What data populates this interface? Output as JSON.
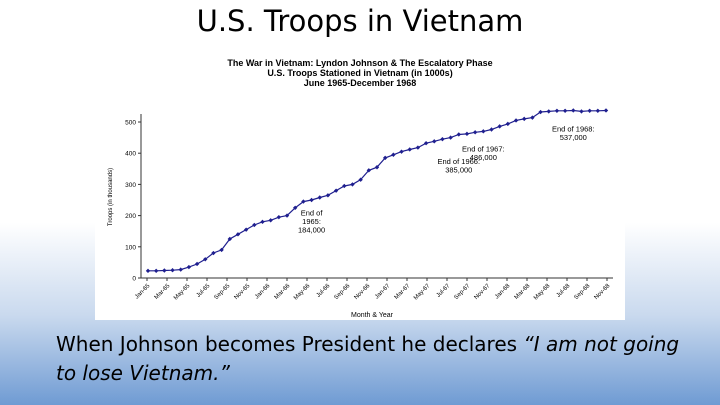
{
  "slide": {
    "title": "U.S. Troops in Vietnam",
    "caption_plain": "When Johnson becomes President he declares ",
    "caption_quote": "“I am not going to lose Vietnam.”"
  },
  "chart_data": {
    "type": "line",
    "title_lines": [
      "The War in Vietnam: Lyndon Johnson & The Escalatory Phase",
      "U.S. Troops Stationed in Vietnam (in 1000s)",
      "June 1965-December 1968"
    ],
    "xlabel": "Month & Year",
    "ylabel": "Troops (in thousands)",
    "ylim": [
      0,
      500
    ],
    "yticks": [
      0,
      100,
      200,
      300,
      400,
      500
    ],
    "grid": false,
    "legend": "none",
    "color": "#1f1f8f",
    "x_tick_labels": [
      "Jan-65",
      "Mar-65",
      "May-65",
      "Jul-65",
      "Sep-65",
      "Nov-65",
      "Jan-66",
      "Mar-66",
      "May-66",
      "Jul-66",
      "Sep-66",
      "Nov-66",
      "Jan-67",
      "Mar-67",
      "May-67",
      "Jul-67",
      "Sep-67",
      "Nov-67",
      "Jan-68",
      "Mar-68",
      "May-68",
      "Jul-68",
      "Sep-68",
      "Nov-68"
    ],
    "values": [
      23,
      23,
      24,
      25,
      27,
      35,
      45,
      60,
      80,
      90,
      125,
      140,
      155,
      170,
      180,
      185,
      195,
      200,
      225,
      245,
      250,
      258,
      265,
      280,
      295,
      300,
      315,
      345,
      355,
      385,
      395,
      405,
      412,
      418,
      432,
      438,
      445,
      450,
      460,
      462,
      467,
      470,
      476,
      486,
      494,
      505,
      510,
      514,
      532,
      534,
      536,
      536,
      537,
      534,
      536,
      536,
      537
    ],
    "annotations": [
      {
        "lines": [
          "End of",
          "1965:",
          "184,000"
        ],
        "x": 20,
        "y": 200
      },
      {
        "lines": [
          "End of 1966:",
          "385,000"
        ],
        "x": 38,
        "y": 365
      },
      {
        "lines": [
          "End of 1967:",
          "486,000"
        ],
        "x": 41,
        "y": 405
      },
      {
        "lines": [
          "End of 1968:",
          "537,000"
        ],
        "x": 52,
        "y": 470
      }
    ]
  }
}
